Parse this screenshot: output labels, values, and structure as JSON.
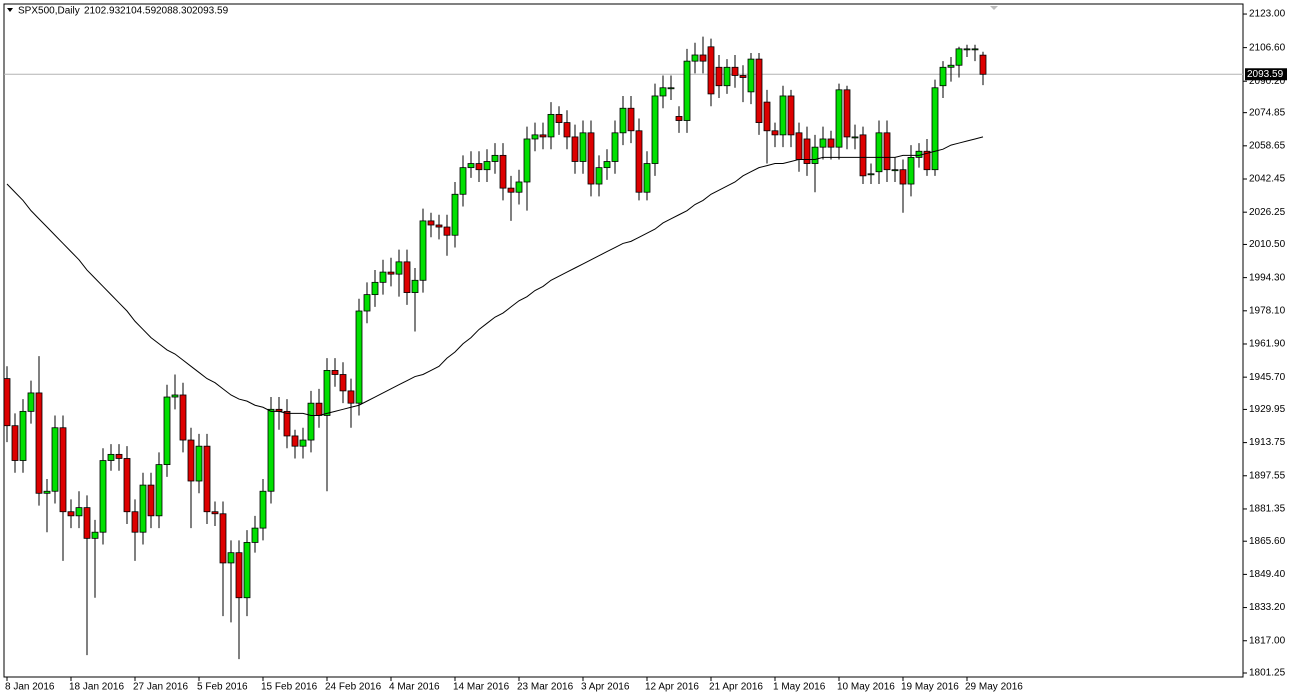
{
  "chart_data": {
    "type": "candlestick",
    "title": "SPX500,Daily",
    "header_values": [
      "2102.93",
      "2104.59",
      "2088.30",
      "2093.59"
    ],
    "up_color": "#00e000",
    "down_color": "#dd0000",
    "ma_color": "#000000",
    "current_price": {
      "value": 2093.59,
      "label": "2093.59"
    },
    "ylim": [
      1799.3,
      2127.9
    ],
    "yticks": [
      {
        "value": 2123,
        "label": "2123.00"
      },
      {
        "value": 2106.6,
        "label": "2106.60"
      },
      {
        "value": 2090.2,
        "label": "2090.20"
      },
      {
        "value": 2074.85,
        "label": "2074.85"
      },
      {
        "value": 2058.65,
        "label": "2058.65"
      },
      {
        "value": 2042.45,
        "label": "2042.45"
      },
      {
        "value": 2026.25,
        "label": "2026.25"
      },
      {
        "value": 2010.5,
        "label": "2010.50"
      },
      {
        "value": 1994.3,
        "label": "1994.30"
      },
      {
        "value": 1978.1,
        "label": "1978.10"
      },
      {
        "value": 1961.9,
        "label": "1961.90"
      },
      {
        "value": 1945.7,
        "label": "1945.70"
      },
      {
        "value": 1929.95,
        "label": "1929.95"
      },
      {
        "value": 1913.75,
        "label": "1913.75"
      },
      {
        "value": 1897.55,
        "label": "1897.55"
      },
      {
        "value": 1881.35,
        "label": "1881.35"
      },
      {
        "value": 1865.6,
        "label": "1865.60"
      },
      {
        "value": 1849.4,
        "label": "1849.40"
      },
      {
        "value": 1833.2,
        "label": "1833.20"
      },
      {
        "value": 1817,
        "label": "1817.00"
      },
      {
        "value": 1801.25,
        "label": "1801.25"
      }
    ],
    "categories": [
      "8 Jan 2016",
      null,
      null,
      null,
      null,
      null,
      null,
      null,
      "18 Jan 2016",
      null,
      null,
      null,
      null,
      null,
      null,
      null,
      "27 Jan 2016",
      null,
      null,
      null,
      null,
      null,
      null,
      null,
      "5 Feb 2016",
      null,
      null,
      null,
      null,
      null,
      null,
      null,
      "15 Feb 2016",
      null,
      null,
      null,
      null,
      null,
      null,
      null,
      "24 Feb 2016",
      null,
      null,
      null,
      null,
      null,
      null,
      null,
      "4 Mar 2016",
      null,
      null,
      null,
      null,
      null,
      null,
      null,
      "14 Mar 2016",
      null,
      null,
      null,
      null,
      null,
      null,
      null,
      "23 Mar 2016",
      null,
      null,
      null,
      null,
      null,
      null,
      null,
      "3 Apr 2016",
      null,
      null,
      null,
      null,
      null,
      null,
      null,
      "12 Apr 2016",
      null,
      null,
      null,
      null,
      null,
      null,
      null,
      "21 Apr 2016",
      null,
      null,
      null,
      null,
      null,
      null,
      null,
      "1 May 2016",
      null,
      null,
      null,
      null,
      null,
      null,
      null,
      "10 May 2016",
      null,
      null,
      null,
      null,
      null,
      null,
      null,
      "19 May 2016",
      null,
      null,
      null,
      null,
      null,
      null,
      null,
      "29 May 2016",
      null,
      null
    ],
    "candles": [
      [
        1945,
        1951,
        1914,
        1922
      ],
      [
        1922,
        1928,
        1899,
        1905
      ],
      [
        1905,
        1935,
        1899,
        1929
      ],
      [
        1929,
        1944,
        1923,
        1938
      ],
      [
        1938,
        1956,
        1883,
        1889
      ],
      [
        1889,
        1896,
        1870,
        1890
      ],
      [
        1890,
        1927,
        1884,
        1921
      ],
      [
        1921,
        1927,
        1856,
        1880
      ],
      [
        1880,
        1886,
        1872,
        1878
      ],
      [
        1878,
        1890,
        1872,
        1882
      ],
      [
        1882,
        1888,
        1810,
        1867
      ],
      [
        1867,
        1876,
        1838,
        1870
      ],
      [
        1870,
        1911,
        1864,
        1905
      ],
      [
        1905,
        1913,
        1900,
        1908
      ],
      [
        1908,
        1913,
        1900,
        1906
      ],
      [
        1906,
        1912,
        1874,
        1880
      ],
      [
        1880,
        1886,
        1856,
        1870
      ],
      [
        1870,
        1899,
        1864,
        1893
      ],
      [
        1893,
        1899,
        1872,
        1878
      ],
      [
        1878,
        1909,
        1872,
        1903
      ],
      [
        1903,
        1942,
        1897,
        1936
      ],
      [
        1936,
        1947,
        1930,
        1937
      ],
      [
        1937,
        1943,
        1909,
        1915
      ],
      [
        1915,
        1921,
        1872,
        1895
      ],
      [
        1895,
        1918,
        1889,
        1912
      ],
      [
        1912,
        1918,
        1874,
        1880
      ],
      [
        1880,
        1885,
        1873,
        1879
      ],
      [
        1879,
        1885,
        1829,
        1855
      ],
      [
        1855,
        1866,
        1826,
        1860
      ],
      [
        1860,
        1866,
        1808,
        1838
      ],
      [
        1838,
        1871,
        1829,
        1865
      ],
      [
        1865,
        1878,
        1860,
        1872
      ],
      [
        1872,
        1896,
        1866,
        1890
      ],
      [
        1890,
        1936,
        1884,
        1930
      ],
      [
        1930,
        1936,
        1920,
        1929
      ],
      [
        1929,
        1935,
        1911,
        1917
      ],
      [
        1917,
        1920,
        1906,
        1912
      ],
      [
        1912,
        1921,
        1906,
        1915
      ],
      [
        1915,
        1939,
        1909,
        1933
      ],
      [
        1933,
        1940,
        1921,
        1927
      ],
      [
        1927,
        1955,
        1890,
        1949
      ],
      [
        1949,
        1955,
        1941,
        1947
      ],
      [
        1947,
        1953,
        1933,
        1939
      ],
      [
        1939,
        1945,
        1921,
        1933
      ],
      [
        1933,
        1984,
        1927,
        1978
      ],
      [
        1978,
        1992,
        1972,
        1986
      ],
      [
        1986,
        1998,
        1980,
        1992
      ],
      [
        1992,
        2003,
        1986,
        1997
      ],
      [
        1997,
        2004,
        1990,
        1996
      ],
      [
        1996,
        2008,
        1985,
        2002
      ],
      [
        2002,
        2008,
        1981,
        1987
      ],
      [
        1987,
        1999,
        1968,
        1993
      ],
      [
        1993,
        2028,
        1987,
        2022
      ],
      [
        2022,
        2026,
        2014,
        2020
      ],
      [
        2020,
        2025,
        2013,
        2019
      ],
      [
        2019,
        2025,
        2005,
        2015
      ],
      [
        2015,
        2041,
        2009,
        2035
      ],
      [
        2035,
        2054,
        2029,
        2048
      ],
      [
        2048,
        2056,
        2043,
        2050
      ],
      [
        2050,
        2056,
        2041,
        2047
      ],
      [
        2047,
        2057,
        2041,
        2051
      ],
      [
        2051,
        2060,
        2045,
        2054
      ],
      [
        2054,
        2060,
        2032,
        2038
      ],
      [
        2038,
        2044,
        2022,
        2036
      ],
      [
        2036,
        2047,
        2030,
        2041
      ],
      [
        2041,
        2068,
        2027,
        2062
      ],
      [
        2062,
        2070,
        2056,
        2064
      ],
      [
        2064,
        2070,
        2057,
        2063
      ],
      [
        2063,
        2080,
        2057,
        2074
      ],
      [
        2074,
        2078,
        2064,
        2070
      ],
      [
        2070,
        2076,
        2057,
        2063
      ],
      [
        2063,
        2069,
        2045,
        2051
      ],
      [
        2051,
        2071,
        2045,
        2065
      ],
      [
        2065,
        2071,
        2034,
        2040
      ],
      [
        2040,
        2054,
        2034,
        2048
      ],
      [
        2048,
        2057,
        2042,
        2051
      ],
      [
        2051,
        2071,
        2045,
        2065
      ],
      [
        2065,
        2083,
        2059,
        2077
      ],
      [
        2077,
        2083,
        2060,
        2066
      ],
      [
        2066,
        2072,
        2032,
        2036
      ],
      [
        2036,
        2056,
        2032,
        2050
      ],
      [
        2050,
        2089,
        2044,
        2083
      ],
      [
        2083,
        2093,
        2077,
        2087
      ],
      [
        2087,
        2093,
        2081,
        2087
      ],
      [
        2073,
        2078,
        2065,
        2071
      ],
      [
        2071,
        2106,
        2065,
        2100
      ],
      [
        2100,
        2109,
        2094,
        2103
      ],
      [
        2103,
        2112,
        2094,
        2100
      ],
      [
        2107,
        2111,
        2078,
        2084
      ],
      [
        2097,
        2103,
        2082,
        2088
      ],
      [
        2088,
        2101,
        2084,
        2097
      ],
      [
        2097,
        2103,
        2087,
        2093
      ],
      [
        2093,
        2098,
        2080,
        2092
      ],
      [
        2085,
        2104,
        2079,
        2101
      ],
      [
        2101,
        2104,
        2064,
        2070
      ],
      [
        2080,
        2086,
        2050,
        2066
      ],
      [
        2066,
        2070,
        2058,
        2064
      ],
      [
        2064,
        2088,
        2058,
        2083
      ],
      [
        2083,
        2086,
        2058,
        2064
      ],
      [
        2065,
        2070,
        2046,
        2052
      ],
      [
        2062,
        2068,
        2044,
        2050
      ],
      [
        2050,
        2064,
        2036,
        2058
      ],
      [
        2058,
        2068,
        2052,
        2062
      ],
      [
        2062,
        2066,
        2052,
        2058
      ],
      [
        2058,
        2089,
        2052,
        2086
      ],
      [
        2086,
        2088,
        2057,
        2063
      ],
      [
        2063,
        2069,
        2057,
        2063
      ],
      [
        2064,
        2068,
        2040,
        2044
      ],
      [
        2045,
        2050,
        2040,
        2045
      ],
      [
        2046,
        2071,
        2040,
        2065
      ],
      [
        2065,
        2071,
        2041,
        2047
      ],
      [
        2047,
        2053,
        2041,
        2047
      ],
      [
        2047,
        2052,
        2026,
        2040
      ],
      [
        2040,
        2059,
        2034,
        2053
      ],
      [
        2053,
        2060,
        2048,
        2056
      ],
      [
        2056,
        2062,
        2044,
        2047
      ],
      [
        2047,
        2091,
        2044,
        2087
      ],
      [
        2088,
        2100,
        2082,
        2097
      ],
      [
        2097,
        2102,
        2090,
        2098
      ],
      [
        2098,
        2107,
        2092,
        2106
      ],
      [
        2106,
        2108,
        2102,
        2106
      ],
      [
        2106,
        2108,
        2100,
        2106
      ],
      [
        2102.93,
        2104.59,
        2088.3,
        2093.59
      ]
    ],
    "moving_average": [
      2040,
      2036,
      2032,
      2027,
      2023,
      2019,
      2015,
      2011,
      2007,
      2003,
      1998,
      1994,
      1990,
      1986,
      1982,
      1978,
      1973,
      1969,
      1965,
      1962,
      1959,
      1957,
      1954,
      1951,
      1948,
      1945,
      1943,
      1940,
      1937,
      1935,
      1934,
      1932,
      1931,
      1929,
      1929,
      1928,
      1928,
      1928,
      1927,
      1927,
      1928,
      1929,
      1930,
      1931,
      1932,
      1934,
      1936,
      1938,
      1940,
      1942,
      1944,
      1946,
      1947,
      1949,
      1951,
      1955,
      1958,
      1962,
      1965,
      1969,
      1972,
      1975,
      1977,
      1980,
      1983,
      1985,
      1988,
      1990,
      1993,
      1995,
      1997,
      1999,
      2001,
      2003,
      2005,
      2007,
      2009,
      2011,
      2012,
      2014,
      2016,
      2018,
      2021,
      2023,
      2025,
      2027,
      2030,
      2032,
      2035,
      2037,
      2039,
      2041,
      2044,
      2046,
      2048,
      2049,
      2050,
      2050,
      2051,
      2052,
      2052,
      2052,
      2053,
      2053,
      2053,
      2053,
      2053,
      2053,
      2053,
      2053,
      2053,
      2053,
      2054,
      2054,
      2054,
      2055,
      2056,
      2057,
      2059,
      2060,
      2061,
      2062,
      2063
    ]
  }
}
